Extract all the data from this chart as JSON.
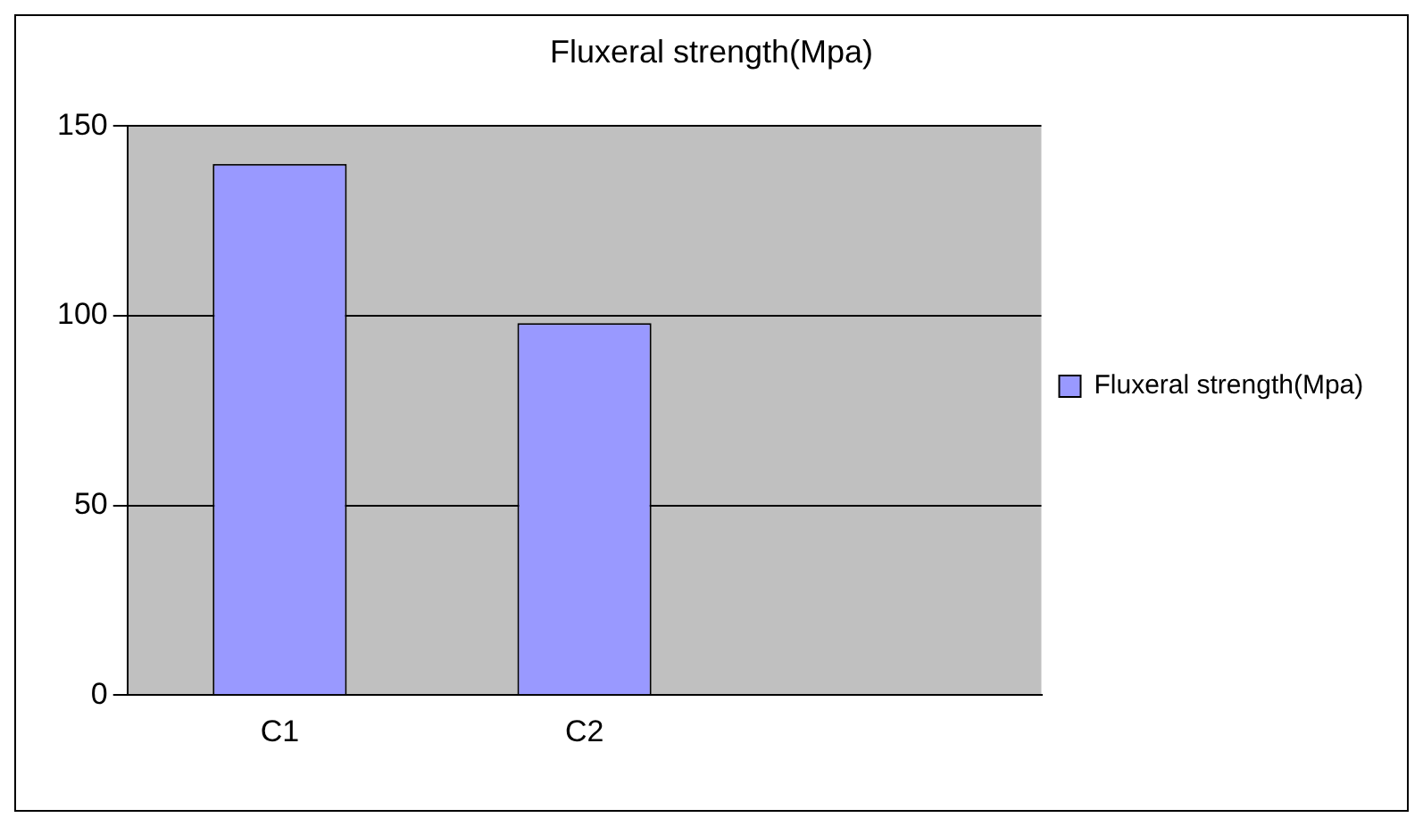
{
  "chart_data": {
    "type": "bar",
    "title": "Fluxeral strength(Mpa)",
    "categories": [
      "C1",
      "C2",
      null
    ],
    "series": [
      {
        "name": "Fluxeral strength(Mpa)",
        "color": "#9999ff",
        "values": [
          140,
          98,
          null
        ]
      }
    ],
    "ylim": [
      0,
      150
    ],
    "yticks": [
      0,
      50,
      100,
      150
    ],
    "grid": "y",
    "legend": "right"
  }
}
